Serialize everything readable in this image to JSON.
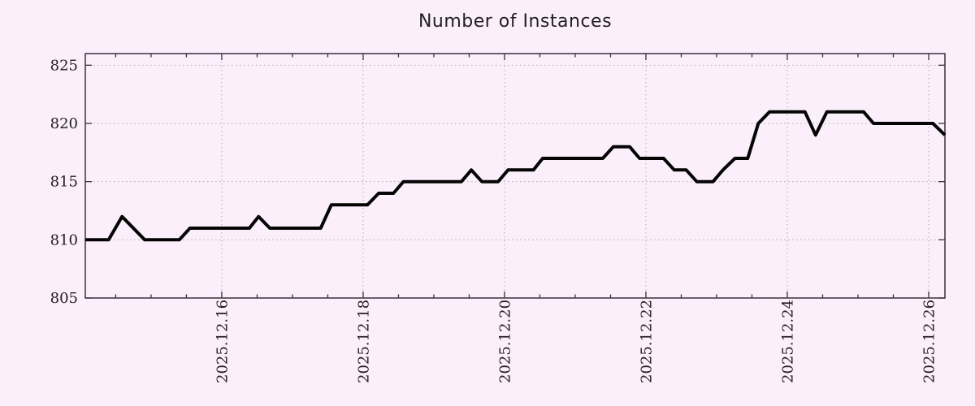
{
  "window": {
    "title": "Number of Instances"
  },
  "colors": {
    "background": "#fbeffb",
    "plot_border": "#3d2f3d",
    "grid": "#b3a9b3",
    "line": "#050505",
    "text": "#232023"
  },
  "chart_data": {
    "type": "line",
    "title": "Number of Instances",
    "xlabel": "",
    "ylabel": "",
    "legend": "none",
    "grid": "dotted gridlines at major x and y ticks",
    "x_axis": {
      "unit": "date, day of December 2025",
      "range_days": [
        14.07,
        26.23
      ],
      "major_ticks_days": [
        16,
        18,
        20,
        22,
        24,
        26
      ],
      "major_tick_labels": [
        "2025.12.16",
        "2025.12.18",
        "2025.12.20",
        "2025.12.22",
        "2025.12.24",
        "2025.12.26"
      ],
      "minor_tick_step_days": 0.5,
      "tick_label_rotation_deg": -90
    },
    "y_axis": {
      "range": [
        805,
        826
      ],
      "ticks": [
        805,
        810,
        815,
        820,
        825
      ],
      "tick_labels": [
        "805",
        "810",
        "815",
        "820",
        "825"
      ]
    },
    "series": [
      {
        "name": "Number of Instances",
        "color": "#050505",
        "points_day_value": [
          [
            14.07,
            810
          ],
          [
            14.4,
            810
          ],
          [
            14.59,
            812
          ],
          [
            14.91,
            810
          ],
          [
            15.4,
            810
          ],
          [
            15.55,
            811
          ],
          [
            16.39,
            811
          ],
          [
            16.52,
            812
          ],
          [
            16.68,
            811
          ],
          [
            17.4,
            811
          ],
          [
            17.55,
            813
          ],
          [
            18.06,
            813
          ],
          [
            18.22,
            814
          ],
          [
            18.43,
            814
          ],
          [
            18.57,
            815
          ],
          [
            19.39,
            815
          ],
          [
            19.53,
            816
          ],
          [
            19.68,
            815
          ],
          [
            19.91,
            815
          ],
          [
            20.05,
            816
          ],
          [
            20.41,
            816
          ],
          [
            20.54,
            817
          ],
          [
            21.39,
            817
          ],
          [
            21.54,
            818
          ],
          [
            21.77,
            818
          ],
          [
            21.91,
            817
          ],
          [
            22.25,
            817
          ],
          [
            22.4,
            816
          ],
          [
            22.57,
            816
          ],
          [
            22.72,
            815
          ],
          [
            22.95,
            815
          ],
          [
            23.09,
            816
          ],
          [
            23.26,
            817
          ],
          [
            23.44,
            817
          ],
          [
            23.59,
            820
          ],
          [
            23.75,
            821
          ],
          [
            24.25,
            821
          ],
          [
            24.4,
            819
          ],
          [
            24.56,
            821
          ],
          [
            25.08,
            821
          ],
          [
            25.22,
            820
          ],
          [
            26.06,
            820
          ],
          [
            26.23,
            819
          ]
        ]
      }
    ]
  }
}
